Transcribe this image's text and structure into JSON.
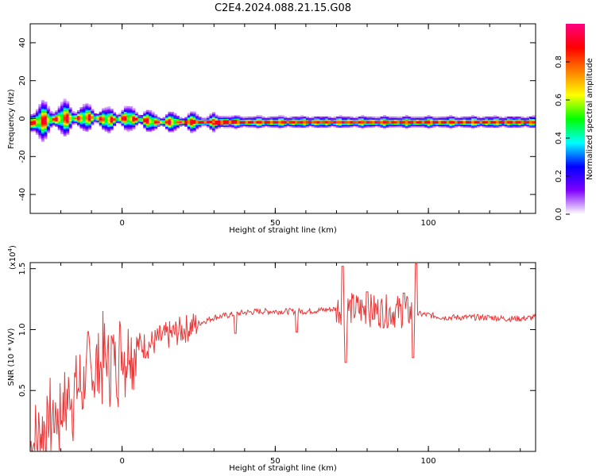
{
  "title": "C2E4.2024.088.21.15.G08",
  "colors": {
    "line": "#e8393a",
    "axis": "#000000"
  },
  "chart_data": [
    {
      "type": "heatmap",
      "name": "spectrogram",
      "xlabel": "Height of straight line (km)",
      "ylabel": "Frequency (Hz)",
      "xlim": [
        -30,
        135
      ],
      "ylim": [
        -50,
        50
      ],
      "x_ticks": [
        0,
        50,
        100
      ],
      "y_ticks": [
        -40,
        -20,
        0,
        20,
        40
      ],
      "y_ticks_text": [
        "-40",
        "-20",
        "0",
        "20",
        "40"
      ],
      "colorbar": {
        "label": "Normalized spectral amplitude",
        "range": [
          0,
          1
        ],
        "ticks": [
          "0.0",
          "0.2",
          "0.4",
          "0.6",
          "0.8"
        ],
        "colormap": [
          "#ffffff",
          "#7f00ff",
          "#0000ff",
          "#00ffff",
          "#00ff00",
          "#ffff00",
          "#ff7f00",
          "#ff0000",
          "#ff0080"
        ]
      },
      "ridge_frequency": [
        [
          -30,
          -2.5
        ],
        [
          -25,
          -1
        ],
        [
          -20,
          0
        ],
        [
          -15,
          0
        ],
        [
          -10,
          0.5
        ],
        [
          -5,
          -1
        ],
        [
          0,
          0
        ],
        [
          5,
          -0.5
        ],
        [
          10,
          -2
        ],
        [
          20,
          -2
        ],
        [
          40,
          -2
        ],
        [
          60,
          -2
        ],
        [
          80,
          -2
        ],
        [
          100,
          -2
        ],
        [
          120,
          -2
        ],
        [
          135,
          -2
        ]
      ],
      "band_halfwidth_hz": [
        [
          -30,
          9
        ],
        [
          -25,
          7
        ],
        [
          -20,
          7
        ],
        [
          -15,
          6
        ],
        [
          -10,
          5
        ],
        [
          -5,
          5
        ],
        [
          0,
          5
        ],
        [
          5,
          5
        ],
        [
          10,
          4
        ],
        [
          20,
          4
        ],
        [
          40,
          3
        ],
        [
          60,
          3
        ],
        [
          80,
          3
        ],
        [
          100,
          3
        ],
        [
          120,
          3
        ],
        [
          135,
          3
        ]
      ]
    },
    {
      "type": "line",
      "name": "snr",
      "xlabel": "Height of straight line (km)",
      "ylabel": "SNR (10 * V/V)",
      "scale_label": "(x10",
      "scale_exponent": "4",
      "scale_close": ")",
      "xlim": [
        -30,
        135
      ],
      "ylim": [
        0,
        1.55
      ],
      "x_ticks": [
        0,
        50,
        100
      ],
      "y_ticks": [
        0.5,
        1.0,
        1.5
      ],
      "y_ticks_text": [
        "0.5",
        "1.0",
        "1.5"
      ],
      "series": [
        {
          "x": [
            -30,
            -27,
            -25,
            -23,
            -20,
            -18,
            -15,
            -12,
            -10,
            -7,
            -5,
            -3,
            0,
            2,
            5,
            8,
            10,
            12,
            15,
            18,
            20,
            22,
            25,
            28,
            30,
            35,
            40,
            45,
            50,
            55,
            60,
            65,
            70,
            72,
            75,
            80,
            85,
            90,
            95,
            96,
            100,
            105,
            110,
            115,
            120,
            125,
            130,
            135
          ],
          "values": [
            0.03,
            0.12,
            0.22,
            0.28,
            0.33,
            0.42,
            0.5,
            0.57,
            0.63,
            0.7,
            0.75,
            0.77,
            0.82,
            0.84,
            0.87,
            0.87,
            0.89,
            0.92,
            0.95,
            0.98,
            1.0,
            1.02,
            1.05,
            1.08,
            1.1,
            1.12,
            1.14,
            1.15,
            1.15,
            1.15,
            1.15,
            1.16,
            1.17,
            1.18,
            1.17,
            1.16,
            1.15,
            1.15,
            1.14,
            1.13,
            1.12,
            1.1,
            1.1,
            1.1,
            1.1,
            1.09,
            1.09,
            1.1
          ]
        }
      ],
      "annotations": [
        {
          "x": 37,
          "y": 0.97
        },
        {
          "x": 57,
          "y": 0.98
        },
        {
          "x": 72,
          "y": 1.52
        },
        {
          "x": 73,
          "y": 0.73
        },
        {
          "x": 80,
          "y": 1.31
        },
        {
          "x": 92,
          "y": 1.3
        },
        {
          "x": 95,
          "y": 0.77
        },
        {
          "x": 96,
          "y": 1.54
        }
      ]
    }
  ]
}
